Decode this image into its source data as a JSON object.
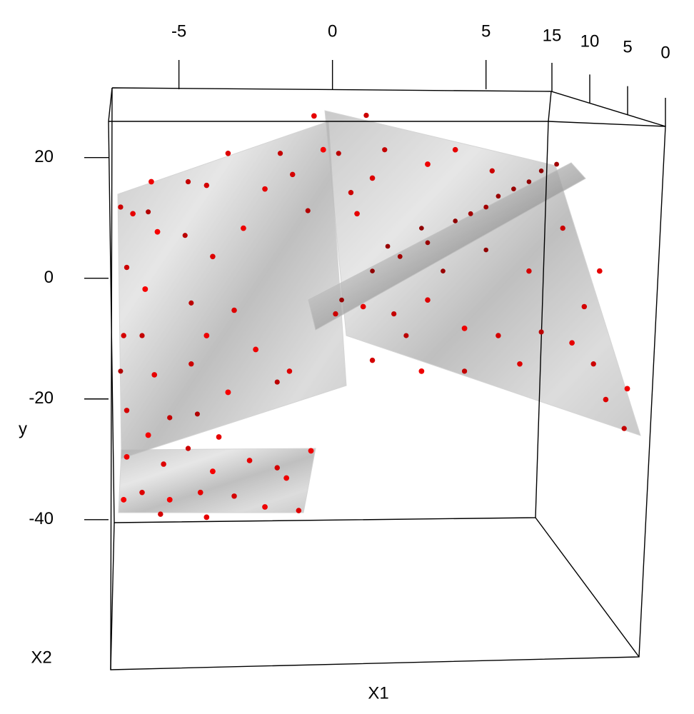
{
  "chart_data": {
    "type": "scatter3d",
    "xlabel": "X1",
    "ylabel": "y",
    "zlabel": "X2",
    "xlim": [
      -7.2,
      7.1
    ],
    "ylim": [
      -40.5,
      26
    ],
    "zlim": [
      0,
      15
    ],
    "xticks": [
      -5,
      0,
      5
    ],
    "yticks": [
      20,
      0,
      -20,
      -40
    ],
    "zticks": [
      15,
      10,
      5,
      0
    ],
    "color": "#ff0000",
    "x": [
      -0.6,
      1.1,
      -0.3,
      0.2,
      -3.4,
      -5.9,
      -4.7,
      -4.1,
      -6.0,
      -6.5,
      -6.9,
      -5.7,
      -4.8,
      -3.9,
      -2.9,
      -1.7,
      -1.3,
      -0.8,
      -2.2,
      -6.7,
      -6.1,
      -4.6,
      -3.2,
      -4.1,
      -6.2,
      -6.8,
      -6.9,
      -5.8,
      -4.6,
      -3.4,
      -1.8,
      -1.4,
      -2.5,
      -5.3,
      -6.7,
      -4.4,
      -3.7,
      -4.7,
      -6.0,
      -6.7,
      -5.5,
      -3.9,
      -2.7,
      -1.8,
      -0.7,
      -6.2,
      -5.3,
      -4.3,
      -3.2,
      -2.2,
      -1.1,
      -6.8,
      -4.1,
      -5.6,
      -1.5,
      0.3,
      1.3,
      2.2,
      3.1,
      4.0,
      5.0,
      5.9,
      6.8,
      7.3,
      1.8,
      2.9,
      4.5,
      5.4,
      6.4,
      0.1,
      1.0,
      2.0,
      3.1,
      4.3,
      5.4,
      6.8,
      7.8,
      8.5,
      8.9,
      9.5,
      9.6,
      8.2,
      8.7,
      7.5,
      6.1,
      4.3,
      2.9,
      1.3,
      4.0,
      5.2,
      2.4,
      3.6,
      5.0,
      6.4,
      0.8,
      0.6,
      1.3,
      1.7,
      3.1
    ],
    "y": [
      26.9,
      27.0,
      21.3,
      20.7,
      20.7,
      16.0,
      16.0,
      15.4,
      11.0,
      10.7,
      11.8,
      7.7,
      7.1,
      3.6,
      8.3,
      20.7,
      17.2,
      11.2,
      14.8,
      1.8,
      -1.8,
      -4.1,
      -5.3,
      -9.5,
      -9.5,
      -9.5,
      -15.4,
      -16.0,
      -14.2,
      -18.9,
      -17.2,
      -15.4,
      -11.8,
      -23.1,
      -21.9,
      -22.5,
      -26.3,
      -28.2,
      -26.0,
      -29.6,
      -30.8,
      -32.0,
      -30.2,
      -31.4,
      -28.6,
      -35.5,
      -36.7,
      -35.5,
      -36.1,
      -37.9,
      -38.5,
      -36.7,
      -39.6,
      -39.1,
      -33.1,
      -3.6,
      1.2,
      3.6,
      5.9,
      9.5,
      11.8,
      14.8,
      17.8,
      18.9,
      5.3,
      8.3,
      10.7,
      13.6,
      16.0,
      -5.9,
      -4.7,
      -5.9,
      -3.6,
      -8.3,
      -9.5,
      -8.9,
      -10.7,
      -14.2,
      -20.1,
      -24.9,
      -18.3,
      -4.7,
      1.2,
      8.3,
      -14.2,
      -15.4,
      -15.4,
      -13.6,
      21.3,
      17.8,
      -9.5,
      1.2,
      4.7,
      1.2,
      10.7,
      14.2,
      16.6,
      21.3,
      18.9
    ],
    "z": [
      12,
      9,
      14,
      7,
      11,
      13,
      8,
      10,
      6,
      12,
      9,
      14,
      7,
      11,
      13,
      8,
      10,
      6,
      12,
      9,
      14,
      7,
      11,
      13,
      8,
      10,
      6,
      12,
      9,
      14,
      7,
      11,
      13,
      8,
      10,
      6,
      12,
      9,
      14,
      13,
      11,
      14,
      12,
      10,
      13,
      11,
      14,
      12,
      10,
      13,
      11,
      14,
      12,
      10,
      13,
      3,
      2,
      4,
      3,
      2,
      4,
      3,
      2,
      4,
      3,
      2,
      4,
      3,
      2,
      9,
      12,
      8,
      11,
      13,
      10,
      7,
      12,
      9,
      11,
      8,
      13,
      10,
      12,
      9,
      11,
      8,
      13,
      10,
      12,
      9,
      7,
      3,
      2,
      10,
      12,
      9,
      11,
      8,
      13
    ]
  }
}
